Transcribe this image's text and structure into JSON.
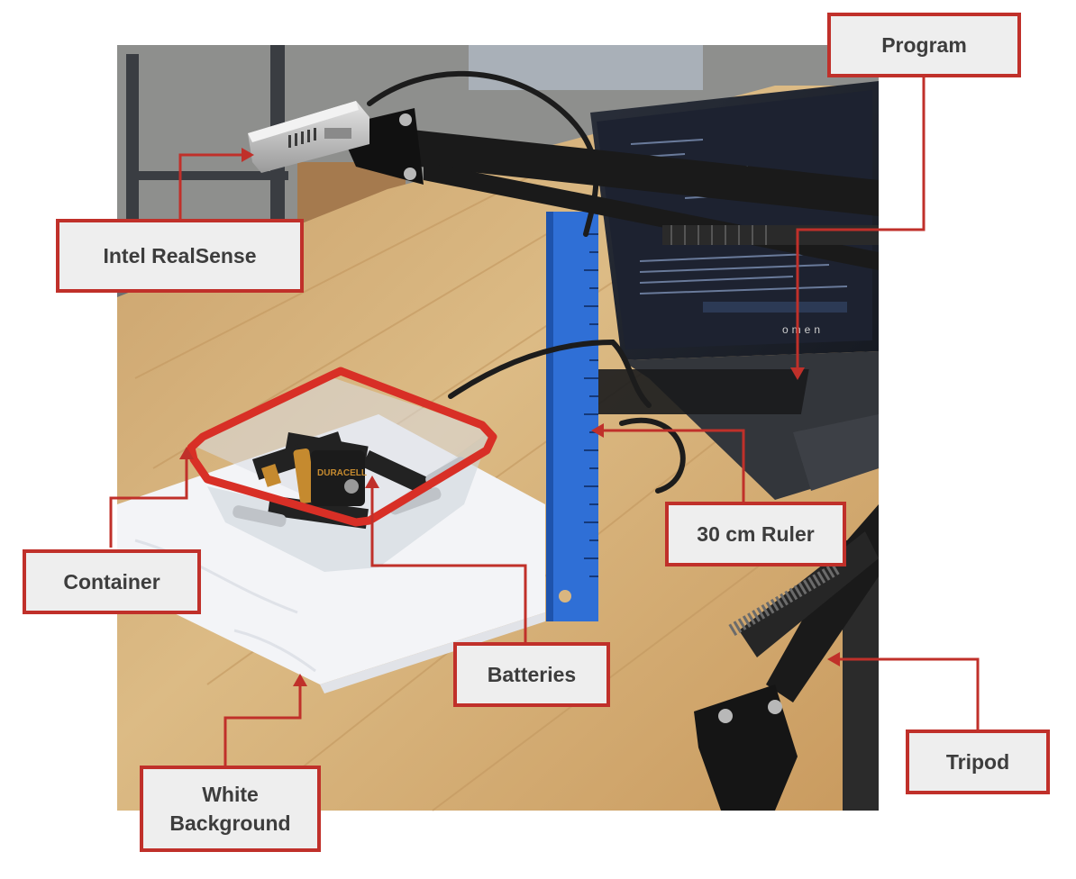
{
  "colors": {
    "callout_border": "#c0302a",
    "callout_fill": "#eeeeee",
    "callout_text": "#3d3d3d",
    "ruler_blue": "#2f6fd6",
    "table_wood": "#d9b680"
  },
  "labels": {
    "realsense": "Intel RealSense",
    "program": "Program",
    "ruler": "30 cm Ruler",
    "container": "Container",
    "batteries": "Batteries",
    "tripod": "Tripod",
    "background_line1": "White",
    "background_line2": "Background"
  },
  "photo": {
    "laptop_brand": "omen",
    "battery_brand": "DURACELL"
  }
}
